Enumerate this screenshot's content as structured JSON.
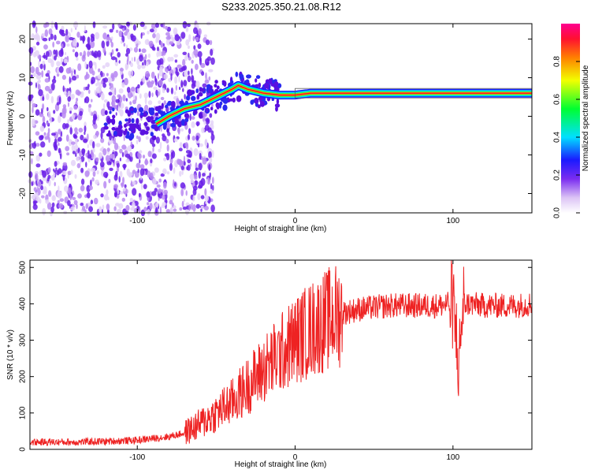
{
  "title": "S233.2025.350.21.08.R12",
  "chart_data": [
    {
      "type": "heatmap",
      "xlabel": "Height of straight line (km)",
      "ylabel": "Frequency (Hz)",
      "xlim": [
        -168,
        150
      ],
      "ylim": [
        -25,
        24
      ],
      "xticks": [
        -100,
        0,
        100
      ],
      "yticks": [
        -20,
        -10,
        0,
        10,
        20
      ],
      "ridge": {
        "x": [
          -88,
          -80,
          -70,
          -60,
          -50,
          -45,
          -40,
          -36,
          -30,
          -20,
          -10,
          0,
          10,
          25,
          40,
          55,
          70,
          85,
          100,
          120,
          150
        ],
        "y": [
          -2,
          0,
          2,
          3,
          5,
          6,
          7,
          8,
          7,
          6,
          5.5,
          5.5,
          6,
          6,
          6,
          6,
          6,
          6,
          6,
          6,
          6
        ]
      },
      "colorbar": {
        "label": "Normalized spectral amplitude",
        "ticks": [
          0.0,
          0.2,
          0.4,
          0.6,
          0.8
        ]
      }
    },
    {
      "type": "line",
      "xlabel": "Height of straight line (km)",
      "ylabel": "SNR (10 * v/v)",
      "xlim": [
        -168,
        150
      ],
      "ylim": [
        0,
        520
      ],
      "xticks": [
        -100,
        0,
        100
      ],
      "yticks": [
        0,
        100,
        200,
        300,
        400,
        500
      ],
      "series": [
        {
          "name": "SNR",
          "color": "#ee2222",
          "x": [
            -168,
            -140,
            -120,
            -100,
            -90,
            -80,
            -70,
            -60,
            -50,
            -40,
            -30,
            -20,
            -10,
            0,
            10,
            20,
            30,
            40,
            50,
            60,
            70,
            80,
            90,
            100,
            104,
            106,
            110,
            120,
            130,
            140,
            150
          ],
          "y": [
            20,
            20,
            22,
            25,
            30,
            35,
            45,
            70,
            100,
            130,
            175,
            220,
            260,
            300,
            330,
            355,
            375,
            385,
            390,
            395,
            395,
            395,
            395,
            400,
            230,
            400,
            400,
            395,
            395,
            395,
            400
          ]
        }
      ]
    }
  ]
}
